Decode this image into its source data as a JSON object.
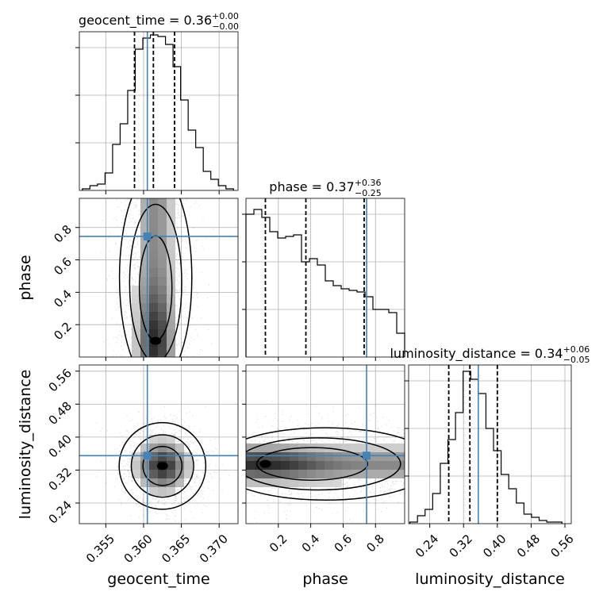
{
  "chart_data": {
    "type": "corner",
    "parameters": [
      "geocent_time",
      "phase",
      "luminosity_distance"
    ],
    "truths": {
      "geocent_time": 0.3605,
      "phase": 0.745,
      "luminosity_distance": 0.355
    },
    "truth_color": "#4682b4",
    "grid": true,
    "diagonal": [
      {
        "param": "geocent_time",
        "title_name": "geocent_time",
        "title_value": "0.36",
        "title_plus": "+0.00",
        "title_minus": "−0.00",
        "quantiles": [
          0.3588,
          0.3613,
          0.3641
        ],
        "xlim": [
          0.3515,
          0.3725
        ],
        "ylim": [
          0,
          1.0
        ],
        "bin_edges": [
          0.3519,
          0.3529,
          0.3539,
          0.3549,
          0.3559,
          0.3569,
          0.3579,
          0.3589,
          0.3599,
          0.3609,
          0.3619,
          0.3629,
          0.3639,
          0.3649,
          0.3659,
          0.3669,
          0.3679,
          0.3689,
          0.3699,
          0.3709,
          0.3719
        ],
        "counts": [
          0.01,
          0.03,
          0.04,
          0.11,
          0.29,
          0.42,
          0.63,
          0.89,
          0.96,
          0.98,
          0.97,
          0.92,
          0.78,
          0.57,
          0.38,
          0.27,
          0.12,
          0.07,
          0.03,
          0.01
        ]
      },
      {
        "param": "phase",
        "title_name": "phase",
        "title_value": "0.37",
        "title_plus": "+0.36",
        "title_minus": "−0.25",
        "quantiles": [
          0.12,
          0.37,
          0.73
        ],
        "xlim": [
          0.0,
          0.98
        ],
        "ylim": [
          0,
          1.0
        ],
        "bin_edges": [
          0.0,
          0.049,
          0.098,
          0.147,
          0.196,
          0.245,
          0.294,
          0.343,
          0.392,
          0.441,
          0.49,
          0.539,
          0.588,
          0.637,
          0.686,
          0.735,
          0.784,
          0.833,
          0.882,
          0.931,
          0.98
        ],
        "counts": [
          0.9,
          0.93,
          0.88,
          0.79,
          0.75,
          0.76,
          0.77,
          0.6,
          0.62,
          0.58,
          0.48,
          0.45,
          0.43,
          0.42,
          0.41,
          0.38,
          0.3,
          0.3,
          0.28,
          0.15
        ]
      },
      {
        "param": "luminosity_distance",
        "title_name": "luminosity_distance",
        "title_value": "0.34",
        "title_plus": "+0.06",
        "title_minus": "−0.05",
        "quantiles": [
          0.285,
          0.335,
          0.4
        ],
        "xlim": [
          0.19,
          0.575
        ],
        "ylim": [
          0,
          1.0
        ],
        "bin_edges": [
          0.193,
          0.211,
          0.229,
          0.247,
          0.265,
          0.283,
          0.301,
          0.319,
          0.337,
          0.355,
          0.373,
          0.391,
          0.409,
          0.427,
          0.445,
          0.463,
          0.481,
          0.499,
          0.517,
          0.535,
          0.553
        ],
        "counts": [
          0.01,
          0.05,
          0.09,
          0.19,
          0.38,
          0.53,
          0.7,
          0.96,
          0.91,
          0.82,
          0.6,
          0.46,
          0.31,
          0.22,
          0.13,
          0.06,
          0.04,
          0.02,
          0.01,
          0.01
        ]
      }
    ],
    "off_diagonal": [
      {
        "x": "geocent_time",
        "y": "phase",
        "xlim": [
          0.3515,
          0.3725
        ],
        "ylim": [
          0.0,
          0.98
        ],
        "mode": [
          0.3616,
          0.1
        ]
      },
      {
        "x": "geocent_time",
        "y": "luminosity_distance",
        "xlim": [
          0.3515,
          0.3725
        ],
        "ylim": [
          0.19,
          0.575
        ],
        "mode": [
          0.3625,
          0.33
        ]
      },
      {
        "x": "phase",
        "y": "luminosity_distance",
        "xlim": [
          0.0,
          0.98
        ],
        "ylim": [
          0.19,
          0.575
        ],
        "mode": [
          0.12,
          0.335
        ]
      }
    ],
    "ticks": {
      "geocent_time": {
        "values": [
          0.355,
          0.36,
          0.365,
          0.37
        ],
        "labels": [
          "0.355",
          "0.360",
          "0.365",
          "0.370"
        ]
      },
      "phase": {
        "values": [
          0.2,
          0.4,
          0.6,
          0.8
        ],
        "labels": [
          "0.2",
          "0.4",
          "0.6",
          "0.8"
        ]
      },
      "luminosity_distance": {
        "values": [
          0.24,
          0.32,
          0.4,
          0.48,
          0.56
        ],
        "labels": [
          "0.24",
          "0.32",
          "0.40",
          "0.48",
          "0.56"
        ]
      }
    },
    "axis_labels": {
      "x": [
        "geocent_time",
        "phase",
        "luminosity_distance"
      ],
      "y": [
        "phase",
        "luminosity_distance"
      ]
    }
  }
}
